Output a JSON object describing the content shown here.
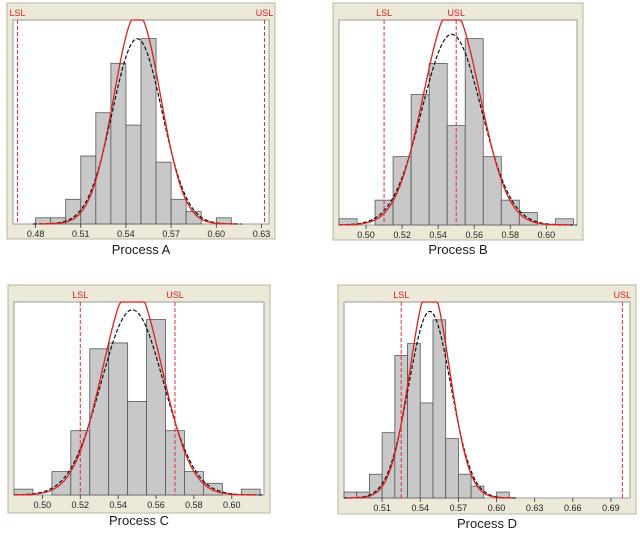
{
  "colors": {
    "frame_background": "#ece9d8",
    "plot_background": "#ffffff",
    "bar_fill": "#c8c8c8",
    "bar_stroke": "#555555",
    "fit_curve": "#e02020",
    "overall_curve": "#111111",
    "spec_line": "#e03030",
    "spec_label": "#d42020"
  },
  "chart_data": [
    {
      "type": "bar",
      "title": "Process A",
      "bin_width": 0.01,
      "xlim": [
        0.465,
        0.635
      ],
      "x_ticks": [
        "0.48",
        "0.51",
        "0.54",
        "0.57",
        "0.60",
        "0.63"
      ],
      "bins": [
        0.485,
        0.495,
        0.505,
        0.515,
        0.525,
        0.535,
        0.545,
        0.555,
        0.565,
        0.575,
        0.585,
        0.595,
        0.605
      ],
      "counts": [
        1,
        1,
        4,
        11,
        18,
        26,
        16,
        30,
        10,
        4,
        2,
        0,
        1
      ],
      "mean": 0.5475,
      "sd": 0.0165,
      "spec_limits": [
        {
          "label": "LSL",
          "value": 0.468
        },
        {
          "label": "USL",
          "value": 0.632
        }
      ]
    },
    {
      "type": "bar",
      "title": "Process B",
      "bin_width": 0.01,
      "xlim": [
        0.485,
        0.617
      ],
      "x_ticks": [
        "0.50",
        "0.52",
        "0.54",
        "0.56",
        "0.58",
        "0.60"
      ],
      "bins": [
        0.49,
        0.5,
        0.51,
        0.52,
        0.53,
        0.54,
        0.55,
        0.56,
        0.57,
        0.58,
        0.59,
        0.6,
        0.61
      ],
      "counts": [
        1,
        0,
        4,
        11,
        21,
        26,
        16,
        30,
        11,
        4,
        2,
        0,
        1
      ],
      "mean": 0.5475,
      "sd": 0.0165,
      "spec_limits": [
        {
          "label": "LSL",
          "value": 0.51
        },
        {
          "label": "USL",
          "value": 0.55
        }
      ]
    },
    {
      "type": "bar",
      "title": "Process C",
      "bin_width": 0.01,
      "xlim": [
        0.485,
        0.617
      ],
      "x_ticks": [
        "0.50",
        "0.52",
        "0.54",
        "0.56",
        "0.58",
        "0.60"
      ],
      "bins": [
        0.49,
        0.5,
        0.51,
        0.52,
        0.53,
        0.54,
        0.55,
        0.56,
        0.57,
        0.58,
        0.59,
        0.6,
        0.61
      ],
      "counts": [
        1,
        0,
        4,
        11,
        25,
        26,
        16,
        30,
        11,
        4,
        2,
        0,
        1
      ],
      "mean": 0.5475,
      "sd": 0.0165,
      "spec_limits": [
        {
          "label": "LSL",
          "value": 0.52
        },
        {
          "label": "USL",
          "value": 0.57
        }
      ]
    },
    {
      "type": "bar",
      "title": "Process D",
      "bin_width": 0.01,
      "xlim": [
        0.48,
        0.705
      ],
      "x_ticks": [
        "0.51",
        "0.54",
        "0.57",
        "0.60",
        "0.63",
        "0.66",
        "0.69"
      ],
      "bins": [
        0.485,
        0.495,
        0.505,
        0.515,
        0.525,
        0.535,
        0.545,
        0.555,
        0.565,
        0.575,
        0.585,
        0.595,
        0.605
      ],
      "counts": [
        1,
        1,
        4,
        11,
        24,
        26,
        16,
        30,
        10,
        4,
        2,
        0,
        1
      ],
      "mean": 0.5475,
      "sd": 0.0165,
      "spec_limits": [
        {
          "label": "LSL",
          "value": 0.525
        },
        {
          "label": "USL",
          "value": 0.699
        }
      ]
    }
  ]
}
